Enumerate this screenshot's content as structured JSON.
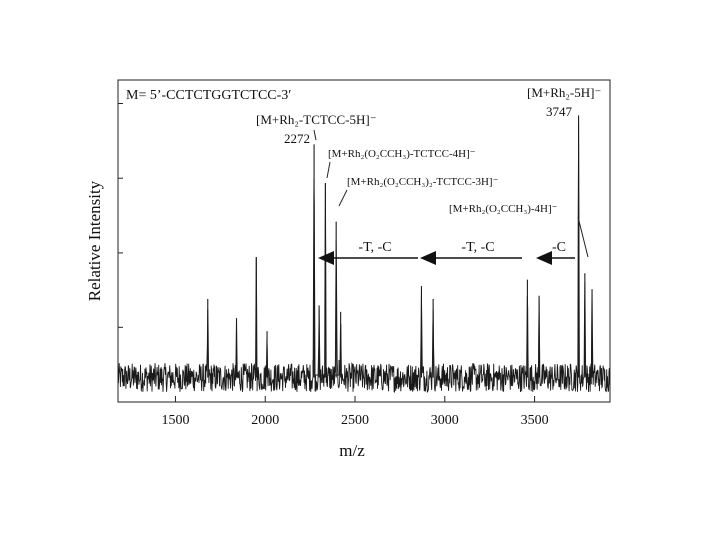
{
  "chart_data": {
    "type": "line",
    "title": "",
    "xlabel": "m/z",
    "ylabel": "Relative Intensity",
    "xlim": [
      1180,
      3920
    ],
    "ylim": [
      0,
      100
    ],
    "x_ticks": [
      1500,
      2000,
      2500,
      3000,
      3500
    ],
    "x_tick_labels": [
      "1500",
      "2000",
      "2500",
      "3000",
      "3500"
    ],
    "y_ticks": [
      0,
      23.2,
      46.3,
      69.5,
      92.7
    ],
    "grid": false,
    "baseline": 7.6,
    "noise_amplitude": 4.5,
    "peaks": [
      {
        "x": 1680,
        "y": 32
      },
      {
        "x": 1840,
        "y": 26
      },
      {
        "x": 1950,
        "y": 45
      },
      {
        "x": 2010,
        "y": 22
      },
      {
        "x": 2272,
        "y": 80
      },
      {
        "x": 2300,
        "y": 30
      },
      {
        "x": 2335,
        "y": 68
      },
      {
        "x": 2395,
        "y": 56
      },
      {
        "x": 2420,
        "y": 28
      },
      {
        "x": 2870,
        "y": 36
      },
      {
        "x": 2935,
        "y": 32
      },
      {
        "x": 3460,
        "y": 38
      },
      {
        "x": 3525,
        "y": 33
      },
      {
        "x": 3745,
        "y": 89
      },
      {
        "x": 3780,
        "y": 40
      },
      {
        "x": 3820,
        "y": 35
      }
    ],
    "annotations": {
      "sequence": "M= 5’-CCTCTGGTCTCC-3′",
      "peak_a": {
        "text": "[M+Rh₂-TCTCC-5H]⁻",
        "value": "2272"
      },
      "peak_b": {
        "text": "[M+Rh₂(O₂CCH₃)-TCTCC-4H]⁻"
      },
      "peak_c": {
        "text": "[M+Rh₂(O₂CCH₃)₂-TCTCC-3H]⁻"
      },
      "peak_d": {
        "text": "[M+Rh₂-5H]⁻",
        "value": "3747"
      },
      "peak_e": {
        "text": "[M+Rh₂(O₂CCH₃)-4H]⁻"
      },
      "arrow_1": "-T, -C",
      "arrow_2": "-T, -C",
      "arrow_3": "-C"
    }
  }
}
